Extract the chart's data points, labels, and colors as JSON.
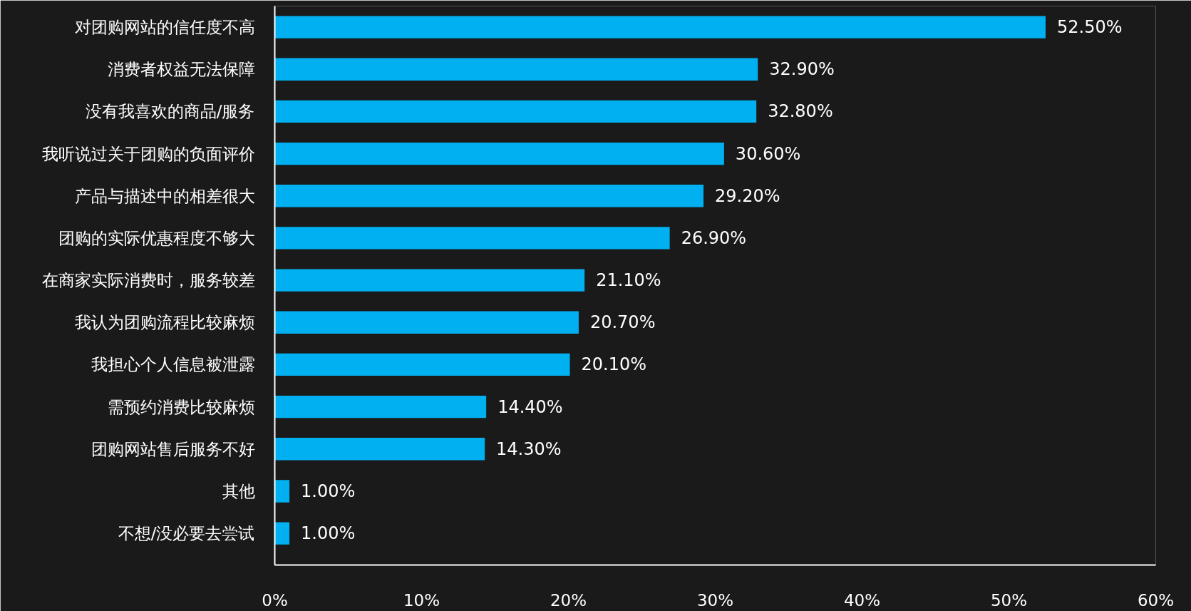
{
  "chart_data": {
    "type": "bar",
    "orientation": "horizontal",
    "categories": [
      "对团购网站的信任度不高",
      "消费者权益无法保障",
      "没有我喜欢的商品/服务",
      "我听说过关于团购的负面评价",
      "产品与描述中的相差很大",
      "团购的实际优惠程度不够大",
      "在商家实际消费时，服务较差",
      "我认为团购流程比较麻烦",
      "我担心个人信息被泄露",
      "需预约消费比较麻烦",
      "团购网站售后服务不好",
      "其他",
      "不想/没必要去尝试"
    ],
    "values": [
      52.5,
      32.9,
      32.8,
      30.6,
      29.2,
      26.9,
      21.1,
      20.7,
      20.1,
      14.4,
      14.3,
      1.0,
      1.0
    ],
    "value_labels": [
      "52.50%",
      "32.90%",
      "32.80%",
      "30.60%",
      "29.20%",
      "26.90%",
      "21.10%",
      "20.70%",
      "20.10%",
      "14.40%",
      "14.30%",
      "1.00%",
      "1.00%"
    ],
    "color": "#00b0f0",
    "xlim": [
      0,
      60
    ],
    "xticks": [
      {
        "value": 0,
        "label": "0%"
      },
      {
        "value": 10,
        "label": "10%"
      },
      {
        "value": 20,
        "label": "20%"
      },
      {
        "value": 30,
        "label": "30%"
      },
      {
        "value": 40,
        "label": "40%"
      },
      {
        "value": 50,
        "label": "50%"
      },
      {
        "value": 60,
        "label": "60%"
      }
    ],
    "grid": false
  }
}
